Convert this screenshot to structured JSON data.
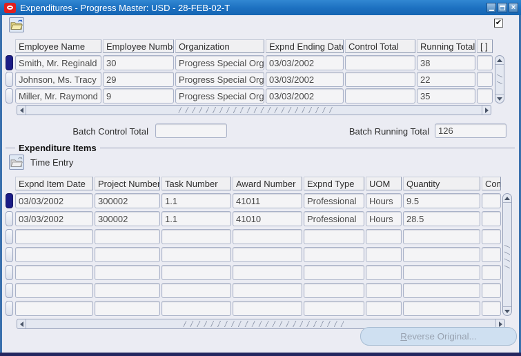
{
  "window": {
    "title": "Expenditures - Progress Master: USD - 28-FEB-02-T"
  },
  "toolbar": {
    "checkbox_checked": true,
    "check_glyph": "✔"
  },
  "expenditures_table": {
    "columns": [
      "Employee Name",
      "Employee Number",
      "Organization",
      "Expnd Ending Date",
      "Control Total",
      "Running Total",
      "[ ]"
    ],
    "rows": [
      [
        "Smith, Mr. Reginald",
        "30",
        "Progress Special Org",
        "03/03/2002",
        "",
        "38",
        ""
      ],
      [
        "Johnson, Ms. Tracy",
        "29",
        "Progress Special Org",
        "03/03/2002",
        "",
        "22",
        ""
      ],
      [
        "Miller, Mr. Raymond",
        "9",
        "Progress Special Org",
        "03/03/2002",
        "",
        "35",
        ""
      ]
    ],
    "selected_row_index": 0
  },
  "batch_totals": {
    "control_label": "Batch Control Total",
    "control_value": "",
    "running_label": "Batch Running Total",
    "running_value": "126"
  },
  "expenditure_items": {
    "frame_title": "Expenditure Items",
    "time_entry_label": "Time Entry",
    "columns": [
      "Expnd Item Date",
      "Project Number",
      "Task Number",
      "Award Number",
      "Expnd Type",
      "UOM",
      "Quantity",
      "Comment"
    ],
    "rows": [
      [
        "03/03/2002",
        "300002",
        "1.1",
        "41011",
        "Professional",
        "Hours",
        "9.5",
        ""
      ],
      [
        "03/03/2002",
        "300002",
        "1.1",
        "41010",
        "Professional",
        "Hours",
        "28.5",
        ""
      ]
    ],
    "empty_rows": 5,
    "selected_row_index": 0
  },
  "footer": {
    "reverse_button": {
      "accesskey": "R",
      "rest": "everse Original..."
    }
  }
}
